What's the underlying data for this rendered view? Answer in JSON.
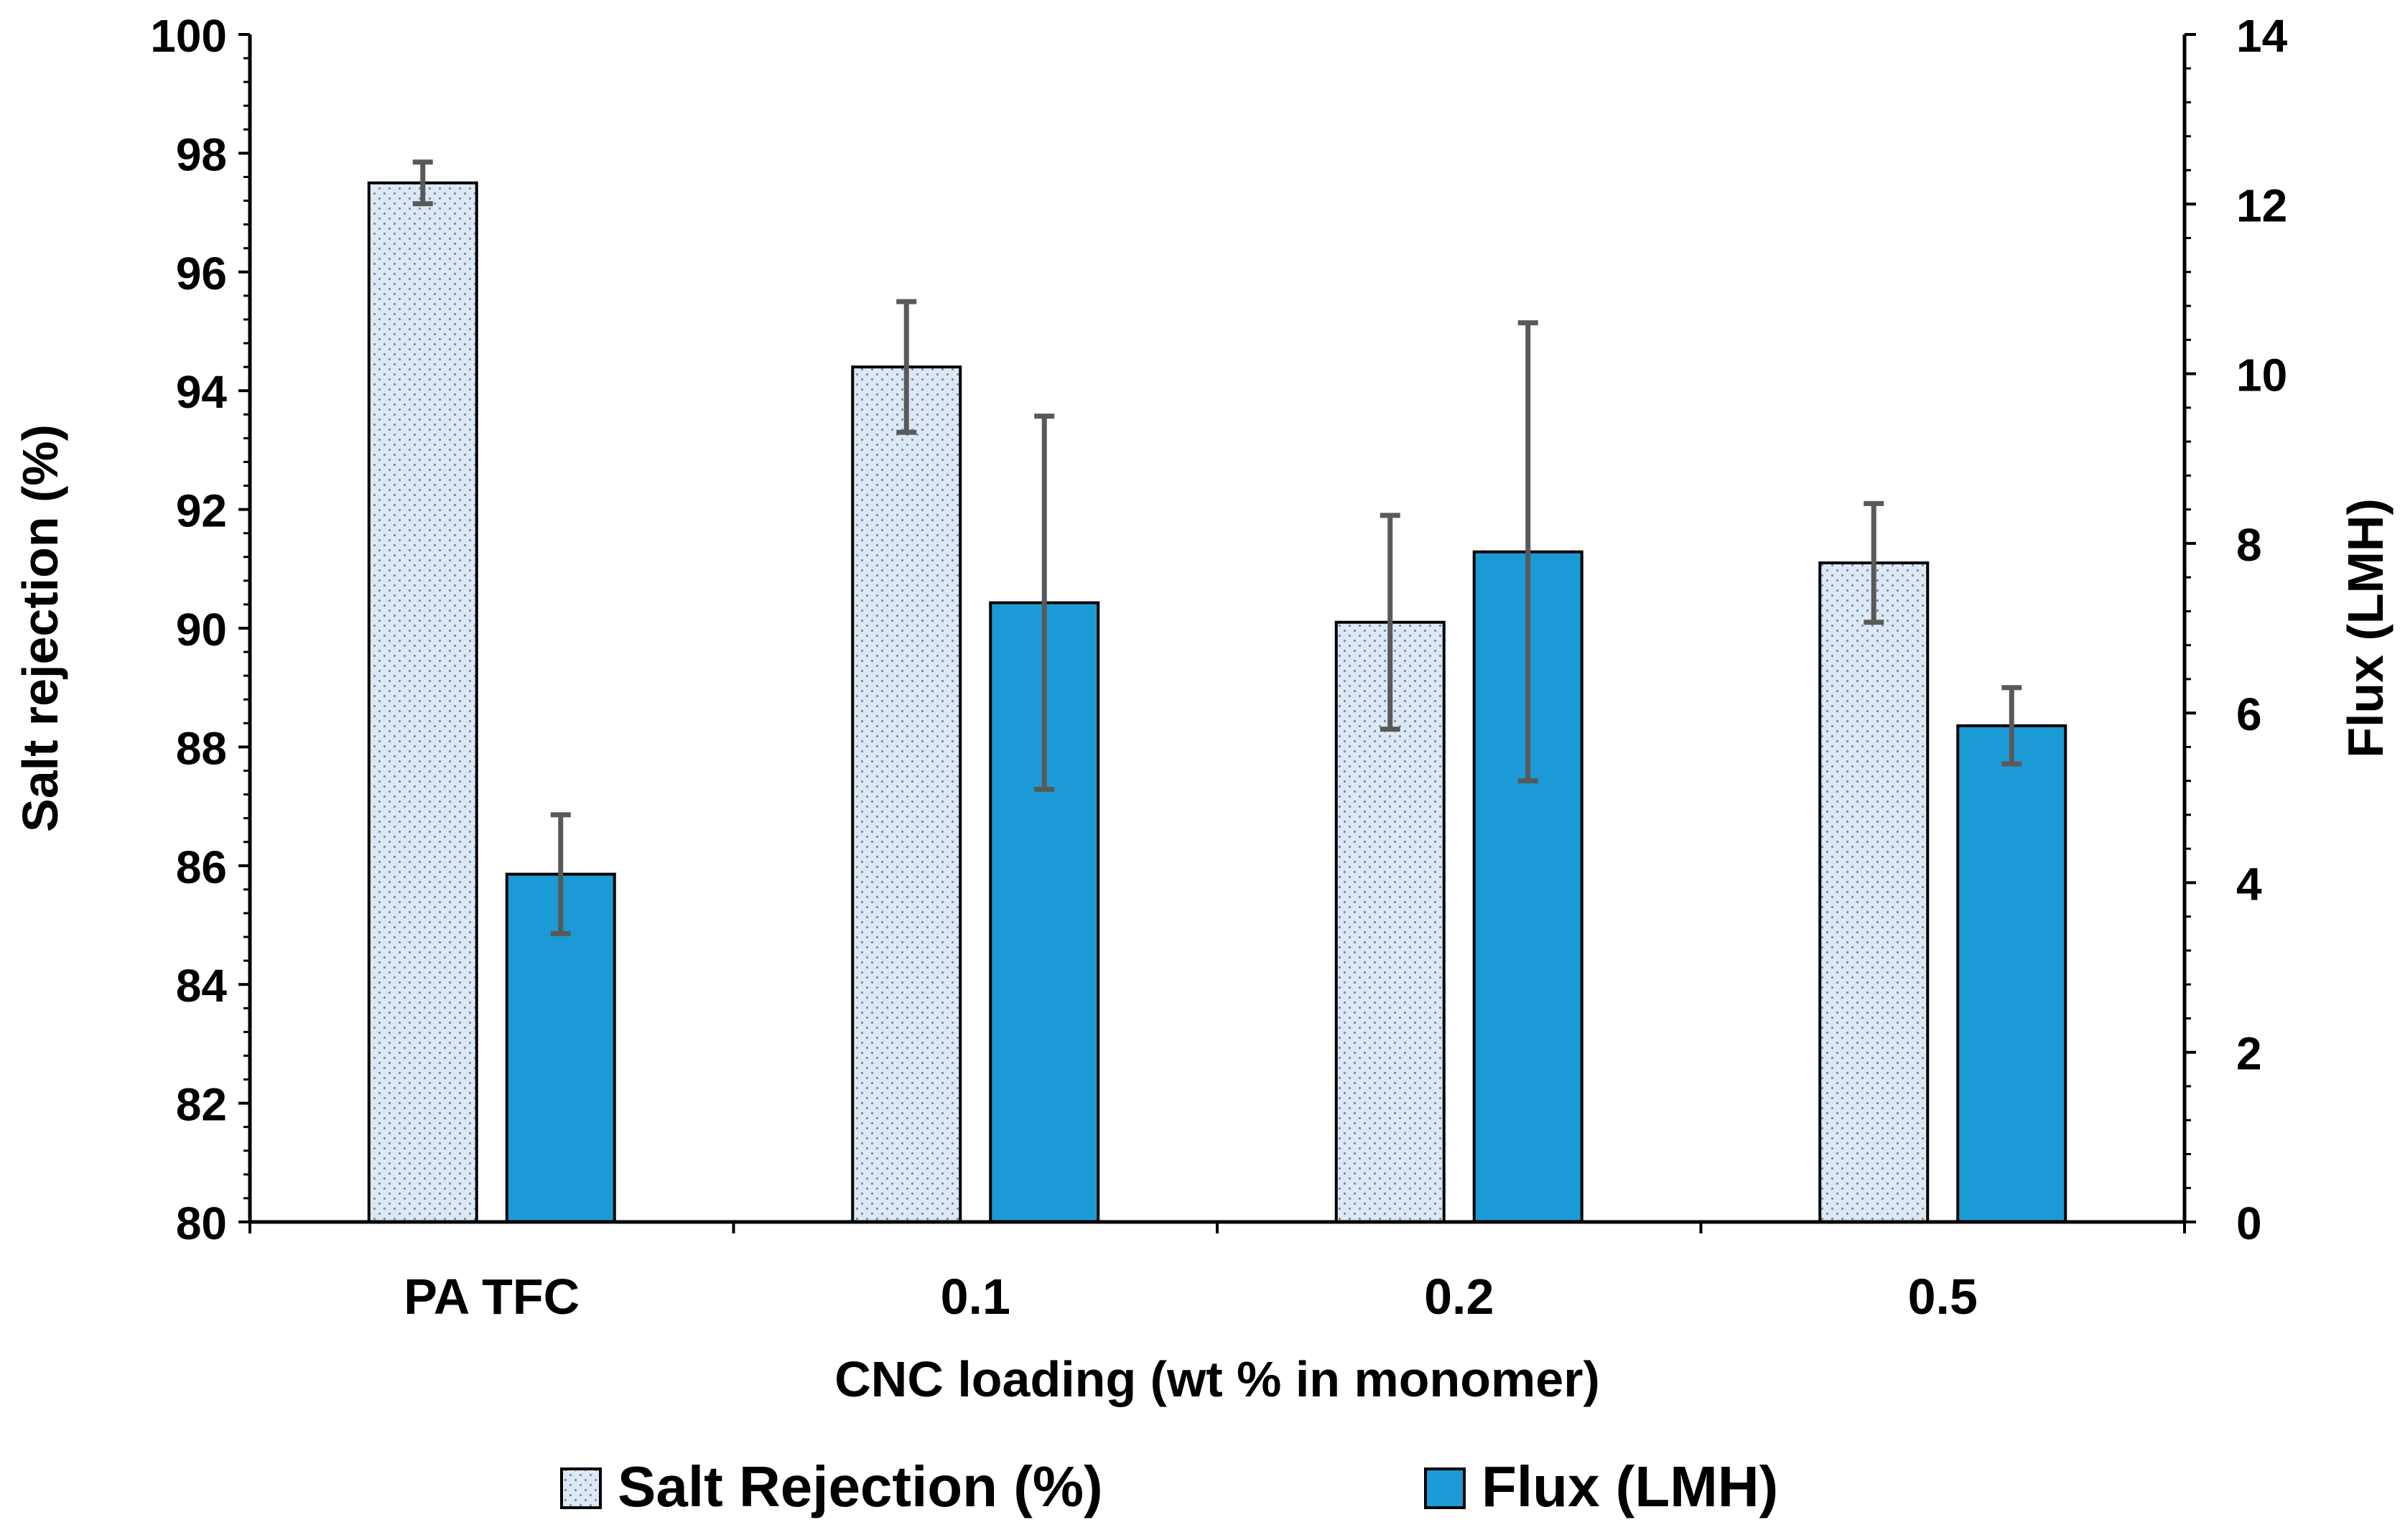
{
  "chart_data": {
    "type": "bar",
    "categories": [
      "PA TFC",
      "0.1",
      "0.2",
      "0.5"
    ],
    "xlabel": "CNC loading (wt % in monomer)",
    "ylabel_left": "Salt rejection (%)",
    "ylabel_right": "Flux (LMH)",
    "ylim_left": [
      80,
      100
    ],
    "ylim_right": [
      0,
      14
    ],
    "yticks_left": [
      "80",
      "82",
      "84",
      "86",
      "88",
      "90",
      "92",
      "94",
      "96",
      "98",
      "100"
    ],
    "yticks_right": [
      "0",
      "2",
      "4",
      "6",
      "8",
      "10",
      "12",
      "14"
    ],
    "legend_position": "bottom",
    "series": [
      {
        "name": "Salt Rejection (%)",
        "axis": "left",
        "pattern": "dotted",
        "fill": "#dce9f5",
        "values": [
          97.5,
          94.4,
          90.1,
          91.1
        ],
        "errors": [
          0.35,
          1.1,
          1.8,
          1.0
        ]
      },
      {
        "name": "Flux (LMH)",
        "axis": "right",
        "pattern": "solid",
        "fill": "#1c9ad6",
        "values": [
          4.1,
          7.3,
          7.9,
          5.85
        ],
        "errors": [
          0.7,
          2.2,
          2.7,
          0.45
        ]
      }
    ]
  },
  "colors": {
    "axis": "#000000",
    "errorbar": "#595959",
    "dot": "#7a8ea3"
  }
}
